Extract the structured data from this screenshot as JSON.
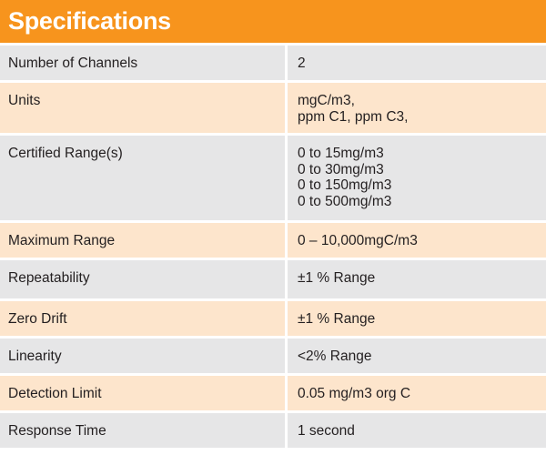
{
  "title": "Specifications",
  "colors": {
    "header": "#f7941d",
    "header_text": "#ffffff",
    "row_grey": "#e6e6e7",
    "row_peach": "#fde5cc",
    "text": "#231f20"
  },
  "rows": [
    {
      "label": "Number of Channels",
      "values": [
        "2"
      ]
    },
    {
      "label": "Units",
      "values": [
        "mgC/m3,",
        "ppm C1, ppm C3,"
      ]
    },
    {
      "label": "Certified Range(s)",
      "values": [
        "0 to 15mg/m3",
        "0 to 30mg/m3",
        "0 to 150mg/m3",
        "0 to 500mg/m3"
      ]
    },
    {
      "label": "Maximum Range",
      "values": [
        "0 – 10,000mgC/m3"
      ]
    },
    {
      "label": "Repeatability",
      "values": [
        "±1 % Range"
      ]
    },
    {
      "label": "Zero Drift",
      "values": [
        "±1 % Range"
      ]
    },
    {
      "label": "Linearity",
      "values": [
        "<2% Range"
      ]
    },
    {
      "label": "Detection Limit",
      "values": [
        "0.05 mg/m3 org C"
      ]
    },
    {
      "label": "Response Time",
      "values": [
        "1 second"
      ]
    }
  ]
}
